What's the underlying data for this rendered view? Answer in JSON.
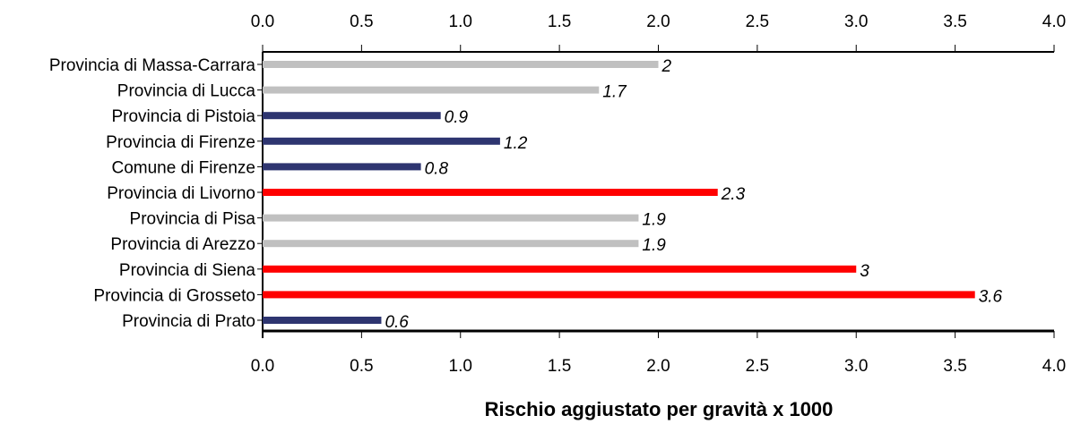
{
  "chart_data": {
    "type": "bar",
    "orientation": "horizontal",
    "categories": [
      "Provincia di Massa-Carrara",
      "Provincia di Lucca",
      "Provincia di Pistoia",
      "Provincia di Firenze",
      "Comune di Firenze",
      "Provincia di Livorno",
      "Provincia di Pisa",
      "Provincia di Arezzo",
      "Provincia di Siena",
      "Provincia di Grosseto",
      "Provincia di Prato"
    ],
    "values": [
      2,
      1.7,
      0.9,
      1.2,
      0.8,
      2.3,
      1.9,
      1.9,
      3,
      3.6,
      0.6
    ],
    "value_labels": [
      "2",
      "1.7",
      "0.9",
      "1.2",
      "0.8",
      "2.3",
      "1.9",
      "1.9",
      "3",
      "3.6",
      "0.6"
    ],
    "bar_colors": [
      "#c0c0c0",
      "#c0c0c0",
      "#2e3570",
      "#2e3570",
      "#2e3570",
      "#ff0000",
      "#c0c0c0",
      "#c0c0c0",
      "#ff0000",
      "#ff0000",
      "#2e3570"
    ],
    "xlim": [
      0,
      4
    ],
    "xticks": [
      "0.0",
      "0.5",
      "1.0",
      "1.5",
      "2.0",
      "2.5",
      "3.0",
      "3.5",
      "4.0"
    ],
    "xlabel": "Rischio aggiustato per gravità x 1000",
    "ylabel": "",
    "title": "",
    "grid": false,
    "axis_ticks_top": true,
    "axis_ticks_bottom": true
  }
}
